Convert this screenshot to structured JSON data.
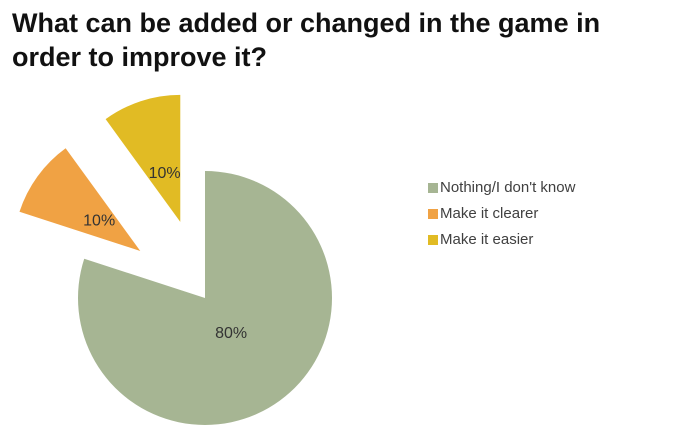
{
  "chart_data": {
    "type": "pie",
    "title": "What can be added or changed in the game in order to improve it?",
    "categories": [
      "Nothing/I don't know",
      "Make it clearer",
      "Make it easier"
    ],
    "values": [
      80,
      10,
      10
    ],
    "value_labels": [
      "80%",
      "10%",
      "10%"
    ],
    "colors": [
      "#a6b593",
      "#f0a244",
      "#e1bb24"
    ],
    "explode": [
      false,
      true,
      true
    ],
    "legend": "right"
  }
}
